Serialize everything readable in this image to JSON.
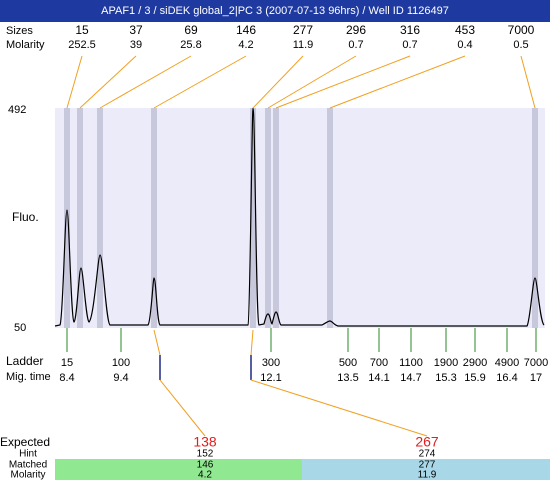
{
  "header": {
    "title": "APAF1 / 3 / siDEK global_2|PC 3 (2007-07-13 96hrs) / Well ID 1126497"
  },
  "top": {
    "row_labels": [
      "Sizes",
      "Molarity"
    ],
    "peaks": [
      {
        "size": "15",
        "molarity": "252.5"
      },
      {
        "size": "37",
        "molarity": "39"
      },
      {
        "size": "69",
        "molarity": "25.8"
      },
      {
        "size": "146",
        "molarity": "4.2"
      },
      {
        "size": "277",
        "molarity": "11.9"
      },
      {
        "size": "296",
        "molarity": "0.7"
      },
      {
        "size": "316",
        "molarity": "0.7"
      },
      {
        "size": "453",
        "molarity": "0.4"
      },
      {
        "size": "7000",
        "molarity": "0.5"
      }
    ]
  },
  "axis": {
    "y_top": "492",
    "y_bottom": "50",
    "label": "Fluo."
  },
  "ladder": {
    "row_labels": [
      "Ladder",
      "Mig. time"
    ],
    "items": [
      {
        "size": "15",
        "time": "8.4"
      },
      {
        "size": "100",
        "time": "9.4"
      },
      {
        "size": "300",
        "time": "12.1"
      },
      {
        "size": "500",
        "time": "13.5"
      },
      {
        "size": "700",
        "time": "14.1"
      },
      {
        "size": "1100",
        "time": "14.7"
      },
      {
        "size": "1900",
        "time": "15.3"
      },
      {
        "size": "2900",
        "time": "15.9"
      },
      {
        "size": "4900",
        "time": "16.4"
      },
      {
        "size": "7000",
        "time": "17"
      }
    ]
  },
  "expected": {
    "row_labels": [
      "Expected",
      "Hint",
      "Matched",
      "Molarity"
    ],
    "items": [
      {
        "expected": "138",
        "hint": "152",
        "matched": "146",
        "molarity": "4.2"
      },
      {
        "expected": "267",
        "hint": "274",
        "matched": "277",
        "molarity": "11.9"
      }
    ]
  }
}
